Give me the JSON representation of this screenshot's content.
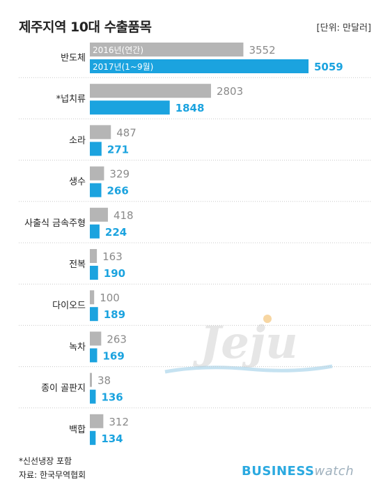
{
  "title": "제주지역 10대 수출품목",
  "unit_label": "[단위: 만달러]",
  "footnote": "*신선냉장 포함",
  "source": "자료: 한국무역협회",
  "brand": {
    "part1": "BUSINESS",
    "part2": "watch"
  },
  "watermark_text": "Jeju",
  "colors": {
    "series2016": "#b5b5b5",
    "series2017": "#1ba3df",
    "label2017": "#1ba3df",
    "label2016": "#8a8a8a",
    "separator": "#c8c8c8"
  },
  "chart_data": {
    "type": "bar",
    "orientation": "horizontal",
    "categories": [
      "반도체",
      "*넙치류",
      "소라",
      "생수",
      "사출식 금속주형",
      "전복",
      "다이오드",
      "녹차",
      "종이 골판지",
      "백합"
    ],
    "series": [
      {
        "name": "2016년(연간)",
        "values": [
          3552,
          2803,
          487,
          329,
          418,
          163,
          100,
          263,
          38,
          312
        ]
      },
      {
        "name": "2017년(1~9월)",
        "values": [
          5059,
          1848,
          271,
          266,
          224,
          190,
          189,
          169,
          136,
          134
        ]
      }
    ],
    "xlim": [
      0,
      5059
    ],
    "legend": "inside-first-bars",
    "grid": false
  }
}
